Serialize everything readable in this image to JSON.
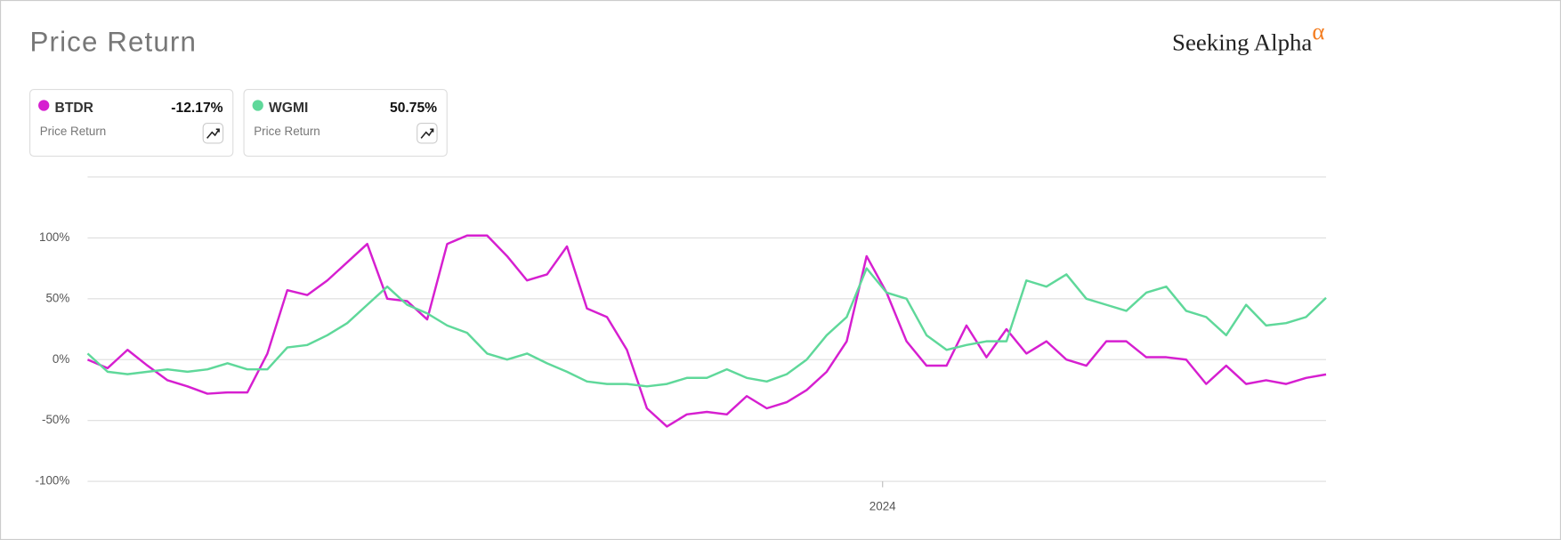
{
  "chart_data": {
    "type": "line",
    "title": "Price Return",
    "logo": "Seeking Alpha",
    "logo_mark": "α",
    "x": [
      0,
      1,
      2,
      3,
      4,
      5,
      6,
      7,
      8,
      9,
      10,
      11,
      12,
      13,
      14,
      15,
      16,
      17,
      18,
      19,
      20,
      21,
      22,
      23,
      24,
      25,
      26,
      27,
      28,
      29,
      30,
      31,
      32,
      33,
      34,
      35,
      36,
      37,
      38,
      39,
      40,
      41,
      42,
      43,
      44,
      45,
      46,
      47,
      48,
      49,
      50,
      51,
      52,
      53,
      54,
      55,
      56,
      57,
      58,
      59,
      60,
      61,
      62
    ],
    "xlim": [
      0,
      62
    ],
    "xticks": [
      {
        "value": 39.8,
        "label": "2024"
      }
    ],
    "ylim": [
      -100,
      150
    ],
    "yticks": [
      {
        "value": -100,
        "label": "-100%"
      },
      {
        "value": -50,
        "label": "-50%"
      },
      {
        "value": 0,
        "label": "0%"
      },
      {
        "value": 50,
        "label": "50%"
      },
      {
        "value": 100,
        "label": "100%"
      }
    ],
    "grid": true,
    "series": [
      {
        "name": "BTDR",
        "color": "#d61fd0",
        "legend_value": "-12.17%",
        "legend_caption": "Price Return",
        "values": [
          0,
          -7,
          8,
          -5,
          -17,
          -22,
          -28,
          -27,
          -27,
          5,
          57,
          53,
          65,
          80,
          95,
          50,
          48,
          33,
          95,
          102,
          102,
          85,
          65,
          70,
          93,
          42,
          35,
          8,
          -40,
          -55,
          -45,
          -43,
          -45,
          -30,
          -40,
          -35,
          -25,
          -10,
          15,
          85,
          55,
          15,
          -5,
          -5,
          28,
          2,
          25,
          5,
          15,
          0,
          -5,
          15,
          15,
          2,
          2,
          0,
          -20,
          -5,
          -20,
          -17,
          -20,
          -15,
          -12.17
        ]
      },
      {
        "name": "WGMI",
        "color": "#5fd89a",
        "legend_value": "50.75%",
        "legend_caption": "Price Return",
        "values": [
          5,
          -10,
          -12,
          -10,
          -8,
          -10,
          -8,
          -3,
          -8,
          -8,
          10,
          12,
          20,
          30,
          45,
          60,
          45,
          38,
          28,
          22,
          5,
          0,
          5,
          -3,
          -10,
          -18,
          -20,
          -20,
          -22,
          -20,
          -15,
          -15,
          -8,
          -15,
          -18,
          -12,
          0,
          20,
          35,
          75,
          55,
          50,
          20,
          8,
          12,
          15,
          15,
          65,
          60,
          70,
          50,
          45,
          40,
          55,
          60,
          40,
          35,
          20,
          45,
          28,
          30,
          35,
          50.75
        ]
      }
    ]
  }
}
